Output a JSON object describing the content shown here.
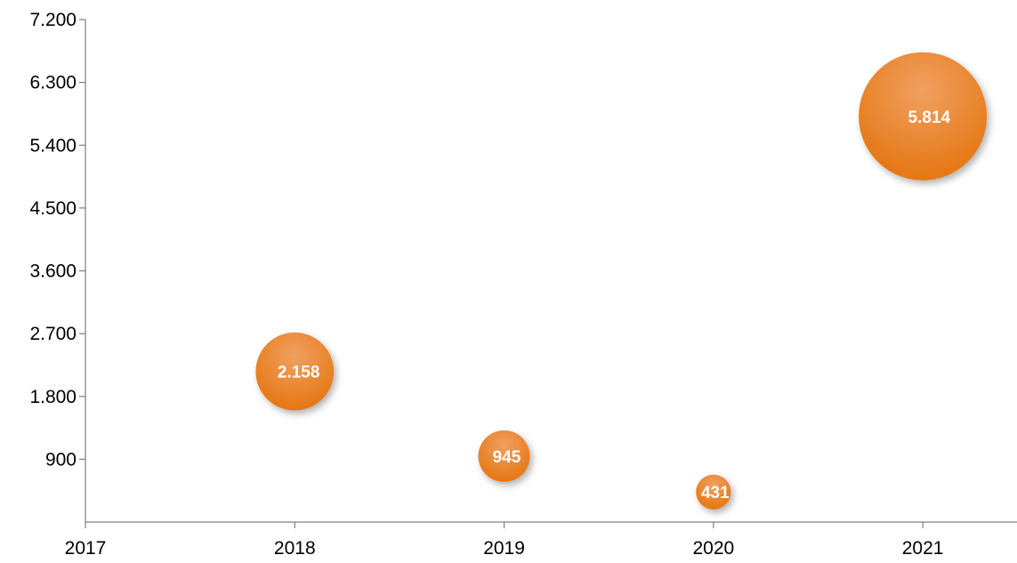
{
  "chart_data": {
    "type": "scatter",
    "title": "",
    "xlabel": "",
    "ylabel": "",
    "grid": false,
    "legend": "none",
    "xlim": [
      2017,
      2021.45
    ],
    "ylim": [
      0,
      7200
    ],
    "x_ticks": [
      "2017",
      "2018",
      "2019",
      "2020",
      "2021"
    ],
    "x_tick_values": [
      2017,
      2018,
      2019,
      2020,
      2021
    ],
    "y_ticks": [
      "900",
      "1.800",
      "2.700",
      "3.600",
      "4.500",
      "5.400",
      "6.300",
      "7.200"
    ],
    "y_tick_values": [
      900,
      1800,
      2700,
      3600,
      4500,
      5400,
      6300,
      7200
    ],
    "bubble_color": "#ee7f1e",
    "points": [
      {
        "x": 2018,
        "y": 2158,
        "size": 2158,
        "label": "2.158"
      },
      {
        "x": 2019,
        "y": 945,
        "size": 945,
        "label": "945"
      },
      {
        "x": 2020,
        "y": 431,
        "size": 431,
        "label": "431"
      },
      {
        "x": 2021,
        "y": 5814,
        "size": 5814,
        "label": "5.814"
      }
    ]
  }
}
